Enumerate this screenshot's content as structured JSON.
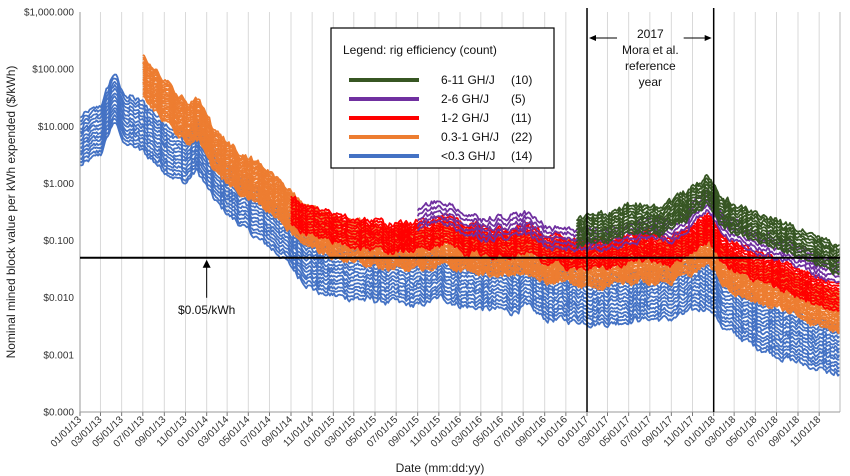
{
  "chart_data": {
    "type": "line",
    "title": "",
    "xlabel": "Date (mm:dd:yy)",
    "ylabel": "Nominal mined block value per kWh expended ($/kWh)",
    "y_scale": "log",
    "ylim": [
      0.0001,
      1000
    ],
    "y_ticks": [
      {
        "value": 1000,
        "label": "$1,000.000"
      },
      {
        "value": 100,
        "label": "$100.000"
      },
      {
        "value": 10,
        "label": "$10.000"
      },
      {
        "value": 1,
        "label": "$1.000"
      },
      {
        "value": 0.1,
        "label": "$0.100"
      },
      {
        "value": 0.01,
        "label": "$0.010"
      },
      {
        "value": 0.001,
        "label": "$0.001"
      },
      {
        "value": 0.0001,
        "label": "$0.000"
      }
    ],
    "xlim": [
      "2013-01-01",
      "2018-12-31"
    ],
    "x_ticks": [
      "01/01/13",
      "03/01/13",
      "05/01/13",
      "07/01/13",
      "09/01/13",
      "11/01/13",
      "01/01/14",
      "03/01/14",
      "05/01/14",
      "07/01/14",
      "09/01/14",
      "11/01/14",
      "01/01/15",
      "03/01/15",
      "05/01/15",
      "07/01/15",
      "09/01/15",
      "11/01/15",
      "01/01/16",
      "03/01/16",
      "05/01/16",
      "07/01/16",
      "09/01/16",
      "11/01/16",
      "01/01/17",
      "03/01/17",
      "05/01/17",
      "07/01/17",
      "09/01/17",
      "11/01/17",
      "01/01/18",
      "03/01/18",
      "05/01/18",
      "07/01/18",
      "09/01/18",
      "11/01/18"
    ],
    "grid": "vertical",
    "legend": {
      "title": "Legend: rig efficiency (count)",
      "placement": "top-center",
      "entries": [
        {
          "label": "6-11 GH/J",
          "count": "(10)",
          "color": "#375623"
        },
        {
          "label": "2-6 GH/J",
          "count": "(5)",
          "color": "#7030A0"
        },
        {
          "label": "1-2  GH/J",
          "count": "(11)",
          "color": "#FF0000"
        },
        {
          "label": "0.3-1  GH/J",
          "count": "(22)",
          "color": "#ED7D31"
        },
        {
          "label": "<0.3  GH/J",
          "count": "(14)",
          "color": "#4472C4"
        }
      ]
    },
    "series": [
      {
        "name": "6-11 GH/J",
        "color": "#375623",
        "n_lines": 10,
        "start": "2016-12-01",
        "top": [
          [
            "2016-12-01",
            0.25
          ],
          [
            "2017-03-01",
            0.3
          ],
          [
            "2017-06-01",
            0.45
          ],
          [
            "2017-08-01",
            0.4
          ],
          [
            "2017-11-01",
            0.8
          ],
          [
            "2017-12-17",
            1.5
          ],
          [
            "2018-01-15",
            0.6
          ],
          [
            "2018-04-01",
            0.35
          ],
          [
            "2018-07-01",
            0.22
          ],
          [
            "2018-10-01",
            0.15
          ],
          [
            "2018-12-31",
            0.08
          ]
        ],
        "spread": 3.0
      },
      {
        "name": "2-6 GH/J",
        "color": "#7030A0",
        "n_lines": 5,
        "start": "2015-09-01",
        "top": [
          [
            "2015-09-01",
            0.35
          ],
          [
            "2015-11-10",
            0.5
          ],
          [
            "2016-01-15",
            0.3
          ],
          [
            "2016-03-01",
            0.25
          ],
          [
            "2016-06-01",
            0.28
          ],
          [
            "2016-07-05",
            0.3
          ],
          [
            "2016-09-01",
            0.18
          ],
          [
            "2016-12-01",
            0.16
          ],
          [
            "2017-03-01",
            0.15
          ],
          [
            "2017-06-01",
            0.25
          ],
          [
            "2017-09-01",
            0.22
          ],
          [
            "2017-12-17",
            0.7
          ],
          [
            "2018-02-01",
            0.3
          ],
          [
            "2018-05-01",
            0.15
          ],
          [
            "2018-08-01",
            0.1
          ],
          [
            "2018-12-31",
            0.035
          ]
        ],
        "spread": 2.2
      },
      {
        "name": "1-2  GH/J",
        "color": "#FF0000",
        "n_lines": 11,
        "start": "2014-09-01",
        "top": [
          [
            "2014-09-01",
            0.6
          ],
          [
            "2014-12-01",
            0.3
          ],
          [
            "2015-03-01",
            0.25
          ],
          [
            "2015-06-01",
            0.2
          ],
          [
            "2015-09-01",
            0.2
          ],
          [
            "2015-11-10",
            0.3
          ],
          [
            "2016-01-15",
            0.2
          ],
          [
            "2016-06-01",
            0.15
          ],
          [
            "2016-07-05",
            0.2
          ],
          [
            "2016-09-01",
            0.12
          ],
          [
            "2016-12-01",
            0.1
          ],
          [
            "2017-03-01",
            0.1
          ],
          [
            "2017-06-01",
            0.15
          ],
          [
            "2017-09-01",
            0.12
          ],
          [
            "2017-12-17",
            0.3
          ],
          [
            "2018-02-01",
            0.12
          ],
          [
            "2018-05-01",
            0.06
          ],
          [
            "2018-08-01",
            0.04
          ],
          [
            "2018-12-31",
            0.015
          ]
        ],
        "spread": 3.0
      },
      {
        "name": "0.3-1  GH/J",
        "color": "#ED7D31",
        "n_lines": 22,
        "start": "2013-07-01",
        "top": [
          [
            "2013-07-01",
            160
          ],
          [
            "2013-09-01",
            60
          ],
          [
            "2013-11-01",
            25
          ],
          [
            "2013-12-03",
            30
          ],
          [
            "2014-02-01",
            7
          ],
          [
            "2014-05-01",
            3
          ],
          [
            "2014-08-01",
            1.2
          ],
          [
            "2014-10-01",
            0.5
          ],
          [
            "2014-12-01",
            0.3
          ],
          [
            "2015-03-01",
            0.2
          ],
          [
            "2015-06-01",
            0.18
          ],
          [
            "2015-09-01",
            0.16
          ],
          [
            "2015-11-10",
            0.2
          ],
          [
            "2016-01-15",
            0.15
          ],
          [
            "2016-06-01",
            0.12
          ],
          [
            "2016-07-05",
            0.15
          ],
          [
            "2016-09-01",
            0.1
          ],
          [
            "2017-03-01",
            0.08
          ],
          [
            "2017-06-01",
            0.1
          ],
          [
            "2017-09-01",
            0.09
          ],
          [
            "2017-12-17",
            0.2
          ],
          [
            "2018-02-01",
            0.08
          ],
          [
            "2018-05-01",
            0.04
          ],
          [
            "2018-08-01",
            0.03
          ],
          [
            "2018-12-31",
            0.012
          ]
        ],
        "spread": 5.0
      },
      {
        "name": "<0.3  GH/J",
        "color": "#4472C4",
        "n_lines": 14,
        "start": "2013-01-01",
        "top": [
          [
            "2013-01-01",
            14
          ],
          [
            "2013-03-01",
            22
          ],
          [
            "2013-04-10",
            90
          ],
          [
            "2013-05-01",
            40
          ],
          [
            "2013-07-01",
            25
          ],
          [
            "2013-09-01",
            12
          ],
          [
            "2013-11-01",
            7
          ],
          [
            "2013-12-03",
            12
          ],
          [
            "2014-02-01",
            3
          ],
          [
            "2014-05-01",
            1.0
          ],
          [
            "2014-08-01",
            0.4
          ],
          [
            "2014-10-01",
            0.15
          ],
          [
            "2014-12-01",
            0.08
          ],
          [
            "2015-03-01",
            0.07
          ],
          [
            "2015-06-01",
            0.06
          ],
          [
            "2015-09-01",
            0.05
          ],
          [
            "2015-11-10",
            0.07
          ],
          [
            "2016-01-15",
            0.05
          ],
          [
            "2016-06-01",
            0.04
          ],
          [
            "2016-07-05",
            0.05
          ],
          [
            "2016-09-01",
            0.03
          ],
          [
            "2017-03-01",
            0.025
          ],
          [
            "2017-06-01",
            0.03
          ],
          [
            "2017-09-01",
            0.03
          ],
          [
            "2017-12-17",
            0.05
          ],
          [
            "2018-02-01",
            0.02
          ],
          [
            "2018-05-01",
            0.01
          ],
          [
            "2018-08-01",
            0.006
          ],
          [
            "2018-12-31",
            0.003
          ]
        ],
        "spread": 7.0
      }
    ],
    "reference_line": {
      "value": 0.05,
      "label": "$0.05/kWh"
    },
    "reference_period": {
      "start": "2017-01-01",
      "end": "2018-01-01",
      "label_lines": [
        "2017",
        "Mora et al.",
        "reference",
        "year"
      ]
    }
  }
}
